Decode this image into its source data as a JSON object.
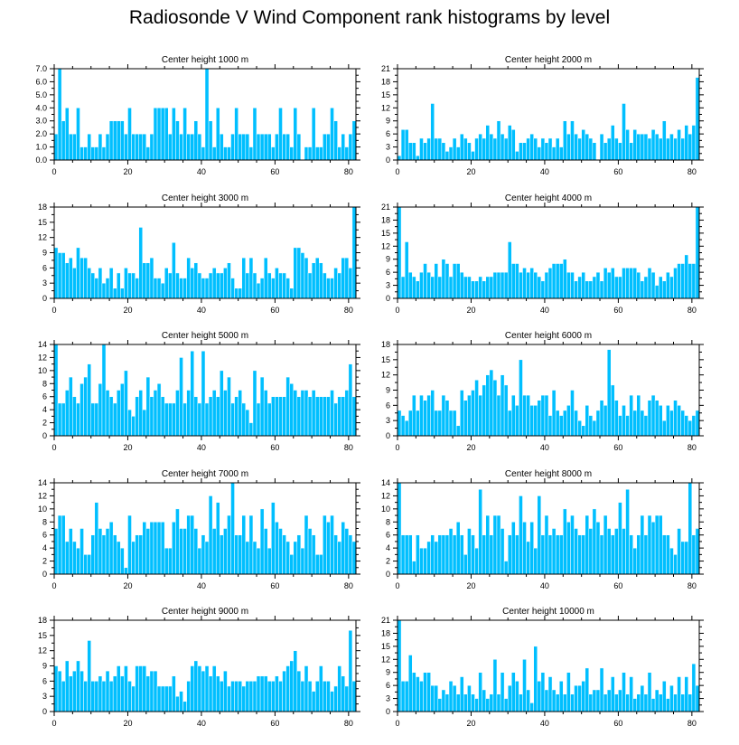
{
  "page": {
    "title": "Radiosonde V Wind Component rank histograms by level"
  },
  "style": {
    "bar_color": "#00BFFF",
    "bar_edge": "#ffffff",
    "axis_color": "#000000"
  },
  "chart_data": [
    {
      "type": "bar",
      "title": "Center height 1000 m",
      "xlabel": "",
      "ylabel": "",
      "xlim": [
        0,
        82
      ],
      "x_ticks": [
        0,
        20,
        40,
        60,
        80
      ],
      "ylim": [
        0,
        7
      ],
      "y_ticks": [
        "0.0",
        "1.0",
        "2.0",
        "3.0",
        "4.0",
        "5.0",
        "6.0",
        "7.0"
      ],
      "categories_start": 0,
      "values": [
        2,
        7,
        3,
        4,
        2,
        2,
        4,
        1,
        1,
        2,
        1,
        1,
        2,
        1,
        2,
        3,
        3,
        3,
        3,
        2,
        4,
        2,
        2,
        2,
        2,
        1,
        2,
        4,
        4,
        4,
        4,
        2,
        4,
        3,
        2,
        4,
        2,
        2,
        3,
        2,
        1,
        7,
        3,
        1,
        4,
        2,
        1,
        1,
        2,
        4,
        2,
        2,
        2,
        1,
        4,
        2,
        2,
        2,
        2,
        1,
        2,
        4,
        2,
        2,
        1,
        4,
        2,
        0,
        1,
        1,
        4,
        1,
        1,
        2,
        2,
        4,
        3,
        1,
        2,
        1,
        2,
        3
      ]
    },
    {
      "type": "bar",
      "title": "Center height 2000 m",
      "xlabel": "",
      "ylabel": "",
      "xlim": [
        0,
        82
      ],
      "x_ticks": [
        0,
        20,
        40,
        60,
        80
      ],
      "ylim": [
        0,
        21
      ],
      "y_ticks": [
        "0",
        "3",
        "6",
        "9",
        "12",
        "15",
        "18",
        "21"
      ],
      "categories_start": 0,
      "values": [
        1,
        7,
        7,
        4,
        4,
        1,
        5,
        4,
        5,
        13,
        5,
        5,
        4,
        2,
        3,
        5,
        3,
        6,
        5,
        4,
        2,
        5,
        6,
        5,
        8,
        6,
        5,
        9,
        6,
        5,
        8,
        7,
        2,
        4,
        4,
        5,
        6,
        5,
        3,
        5,
        4,
        5,
        3,
        5,
        3,
        9,
        6,
        9,
        6,
        5,
        7,
        6,
        5,
        4,
        0,
        6,
        4,
        5,
        8,
        5,
        4,
        13,
        7,
        4,
        7,
        6,
        6,
        6,
        5,
        7,
        6,
        5,
        9,
        5,
        6,
        5,
        7,
        5,
        8,
        6,
        8,
        19
      ]
    },
    {
      "type": "bar",
      "title": "Center height 3000 m",
      "xlabel": "",
      "ylabel": "",
      "xlim": [
        0,
        82
      ],
      "x_ticks": [
        0,
        20,
        40,
        60,
        80
      ],
      "ylim": [
        0,
        18
      ],
      "y_ticks": [
        "0",
        "3",
        "6",
        "9",
        "12",
        "15",
        "18"
      ],
      "categories_start": 0,
      "values": [
        10,
        9,
        9,
        7,
        8,
        6,
        10,
        8,
        8,
        6,
        5,
        4,
        6,
        3,
        4,
        6,
        2,
        5,
        2,
        6,
        5,
        5,
        4,
        14,
        7,
        7,
        8,
        4,
        4,
        3,
        6,
        5,
        11,
        5,
        4,
        4,
        8,
        6,
        7,
        5,
        4,
        4,
        5,
        6,
        5,
        5,
        6,
        7,
        4,
        2,
        2,
        8,
        5,
        8,
        5,
        3,
        4,
        8,
        5,
        4,
        6,
        5,
        5,
        4,
        2,
        10,
        10,
        9,
        8,
        5,
        7,
        8,
        7,
        5,
        4,
        4,
        6,
        5,
        8,
        8,
        6,
        18
      ]
    },
    {
      "type": "bar",
      "title": "Center height 4000 m",
      "xlabel": "",
      "ylabel": "",
      "xlim": [
        0,
        82
      ],
      "x_ticks": [
        0,
        20,
        40,
        60,
        80
      ],
      "ylim": [
        0,
        21
      ],
      "y_ticks": [
        "0",
        "3",
        "6",
        "9",
        "12",
        "15",
        "18",
        "21"
      ],
      "categories_start": 0,
      "values": [
        21,
        5,
        13,
        6,
        5,
        4,
        6,
        8,
        6,
        5,
        8,
        5,
        9,
        8,
        5,
        8,
        8,
        6,
        5,
        5,
        4,
        4,
        5,
        4,
        5,
        5,
        6,
        6,
        6,
        6,
        13,
        8,
        8,
        6,
        7,
        6,
        7,
        6,
        5,
        4,
        6,
        7,
        8,
        8,
        8,
        9,
        6,
        6,
        4,
        5,
        6,
        4,
        4,
        5,
        6,
        4,
        7,
        6,
        7,
        5,
        5,
        7,
        7,
        7,
        7,
        6,
        4,
        5,
        7,
        6,
        3,
        5,
        4,
        6,
        5,
        7,
        8,
        8,
        10,
        8,
        8,
        21
      ]
    },
    {
      "type": "bar",
      "title": "Center height 5000 m",
      "xlabel": "",
      "ylabel": "",
      "xlim": [
        0,
        82
      ],
      "x_ticks": [
        0,
        20,
        40,
        60,
        80
      ],
      "ylim": [
        0,
        14
      ],
      "y_ticks": [
        "0",
        "2",
        "4",
        "6",
        "8",
        "10",
        "12",
        "14"
      ],
      "categories_start": 0,
      "values": [
        14,
        5,
        5,
        7,
        9,
        6,
        5,
        8,
        9,
        11,
        5,
        5,
        8,
        14,
        7,
        6,
        5,
        7,
        8,
        10,
        4,
        3,
        6,
        7,
        4,
        9,
        6,
        7,
        8,
        6,
        5,
        5,
        5,
        7,
        12,
        5,
        7,
        13,
        6,
        5,
        13,
        5,
        6,
        7,
        6,
        10,
        7,
        9,
        5,
        6,
        7,
        5,
        4,
        2,
        10,
        5,
        9,
        7,
        5,
        6,
        6,
        6,
        6,
        9,
        8,
        7,
        6,
        7,
        7,
        6,
        7,
        6,
        6,
        6,
        6,
        7,
        5,
        6,
        6,
        7,
        11,
        6
      ]
    },
    {
      "type": "bar",
      "title": "Center height 6000 m",
      "xlabel": "",
      "ylabel": "",
      "xlim": [
        0,
        82
      ],
      "x_ticks": [
        0,
        20,
        40,
        60,
        80
      ],
      "ylim": [
        0,
        18
      ],
      "y_ticks": [
        "0",
        "3",
        "6",
        "9",
        "12",
        "15",
        "18"
      ],
      "categories_start": 0,
      "values": [
        5,
        4,
        3,
        5,
        8,
        5,
        8,
        7,
        8,
        9,
        5,
        5,
        8,
        7,
        5,
        5,
        2,
        9,
        7,
        8,
        9,
        11,
        8,
        10,
        12,
        13,
        11,
        8,
        12,
        10,
        5,
        8,
        6,
        15,
        8,
        8,
        6,
        6,
        7,
        8,
        8,
        4,
        9,
        5,
        4,
        5,
        6,
        9,
        5,
        3,
        2,
        6,
        4,
        3,
        5,
        7,
        6,
        17,
        10,
        7,
        4,
        6,
        4,
        8,
        5,
        8,
        5,
        4,
        7,
        8,
        7,
        6,
        3,
        6,
        5,
        7,
        6,
        5,
        4,
        3,
        4,
        5
      ]
    },
    {
      "type": "bar",
      "title": "Center height 7000 m",
      "xlabel": "",
      "ylabel": "",
      "xlim": [
        0,
        82
      ],
      "x_ticks": [
        0,
        20,
        40,
        60,
        80
      ],
      "ylim": [
        0,
        14
      ],
      "y_ticks": [
        "0",
        "2",
        "4",
        "6",
        "8",
        "10",
        "12",
        "14"
      ],
      "categories_start": 0,
      "values": [
        7,
        9,
        9,
        5,
        7,
        5,
        4,
        7,
        3,
        3,
        6,
        11,
        7,
        6,
        7,
        8,
        6,
        5,
        4,
        1,
        9,
        5,
        6,
        6,
        8,
        7,
        8,
        8,
        8,
        8,
        4,
        4,
        8,
        10,
        7,
        7,
        9,
        9,
        7,
        4,
        6,
        5,
        12,
        7,
        11,
        6,
        7,
        9,
        14,
        6,
        6,
        9,
        5,
        9,
        5,
        4,
        10,
        7,
        4,
        11,
        8,
        7,
        6,
        5,
        3,
        5,
        6,
        4,
        9,
        7,
        6,
        3,
        3,
        9,
        8,
        9,
        6,
        5,
        8,
        7,
        6,
        5
      ]
    },
    {
      "type": "bar",
      "title": "Center height 8000 m",
      "xlabel": "",
      "ylabel": "",
      "xlim": [
        0,
        82
      ],
      "x_ticks": [
        0,
        20,
        40,
        60,
        80
      ],
      "ylim": [
        0,
        14
      ],
      "y_ticks": [
        "0",
        "2",
        "4",
        "6",
        "8",
        "10",
        "12",
        "14"
      ],
      "categories_start": 0,
      "values": [
        14,
        6,
        6,
        6,
        2,
        6,
        4,
        4,
        5,
        6,
        5,
        6,
        6,
        6,
        7,
        6,
        8,
        6,
        3,
        7,
        6,
        4,
        13,
        6,
        9,
        6,
        9,
        9,
        7,
        2,
        6,
        8,
        6,
        12,
        8,
        5,
        8,
        4,
        12,
        6,
        9,
        6,
        7,
        6,
        6,
        10,
        8,
        9,
        7,
        6,
        6,
        9,
        7,
        10,
        8,
        6,
        9,
        7,
        6,
        7,
        11,
        7,
        13,
        6,
        4,
        6,
        9,
        6,
        9,
        8,
        9,
        9,
        6,
        6,
        4,
        3,
        7,
        5,
        5,
        14,
        6,
        7
      ]
    },
    {
      "type": "bar",
      "title": "Center height 9000 m",
      "xlabel": "",
      "ylabel": "",
      "xlim": [
        0,
        82
      ],
      "x_ticks": [
        0,
        20,
        40,
        60,
        80
      ],
      "ylim": [
        0,
        18
      ],
      "y_ticks": [
        "0",
        "3",
        "6",
        "9",
        "12",
        "15",
        "18"
      ],
      "categories_start": 0,
      "values": [
        9,
        8,
        6,
        10,
        7,
        8,
        10,
        8,
        6,
        14,
        6,
        6,
        7,
        6,
        8,
        6,
        7,
        9,
        7,
        9,
        6,
        5,
        9,
        9,
        9,
        7,
        8,
        8,
        5,
        5,
        5,
        5,
        7,
        3,
        4,
        2,
        6,
        9,
        10,
        9,
        8,
        9,
        7,
        9,
        7,
        6,
        8,
        5,
        6,
        6,
        6,
        5,
        6,
        6,
        6,
        7,
        7,
        7,
        6,
        6,
        7,
        6,
        8,
        9,
        10,
        12,
        8,
        6,
        9,
        6,
        4,
        6,
        9,
        6,
        6,
        4,
        5,
        9,
        7,
        5,
        16,
        6
      ]
    },
    {
      "type": "bar",
      "title": "Center height 10000 m",
      "xlabel": "",
      "ylabel": "",
      "xlim": [
        0,
        82
      ],
      "x_ticks": [
        0,
        20,
        40,
        60,
        80
      ],
      "ylim": [
        0,
        21
      ],
      "y_ticks": [
        "0",
        "3",
        "6",
        "9",
        "12",
        "15",
        "18",
        "21"
      ],
      "categories_start": 0,
      "values": [
        21,
        7,
        7,
        13,
        9,
        8,
        7,
        9,
        9,
        6,
        6,
        3,
        5,
        4,
        7,
        6,
        4,
        8,
        4,
        6,
        4,
        3,
        9,
        5,
        3,
        4,
        12,
        4,
        9,
        3,
        6,
        9,
        7,
        4,
        12,
        5,
        2,
        15,
        7,
        9,
        5,
        8,
        5,
        4,
        7,
        4,
        9,
        4,
        6,
        6,
        7,
        10,
        4,
        5,
        5,
        10,
        4,
        5,
        8,
        4,
        5,
        9,
        4,
        8,
        3,
        4,
        6,
        4,
        9,
        3,
        5,
        4,
        7,
        3,
        6,
        4,
        8,
        4,
        8,
        4,
        11,
        6
      ]
    }
  ]
}
